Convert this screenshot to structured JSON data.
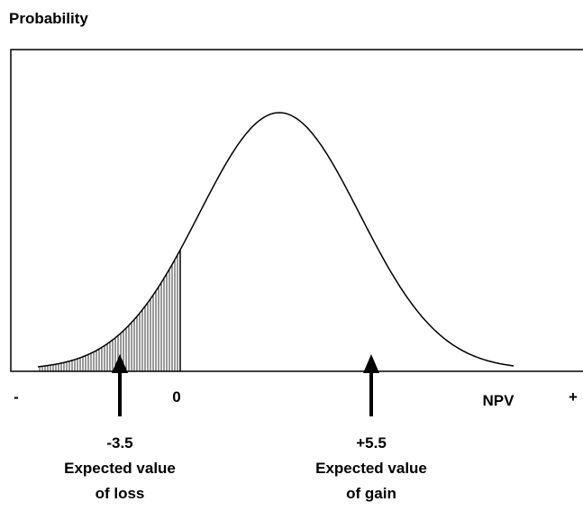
{
  "y_axis_label": "Probability",
  "x_axis": {
    "left": "-",
    "zero": "0",
    "label": "NPV",
    "right": "+"
  },
  "annotations": [
    {
      "value": "-3.5",
      "line1": "Expected value",
      "line2": "of loss"
    },
    {
      "value": "+5.5",
      "line1": "Expected value",
      "line2": "of gain"
    }
  ]
}
